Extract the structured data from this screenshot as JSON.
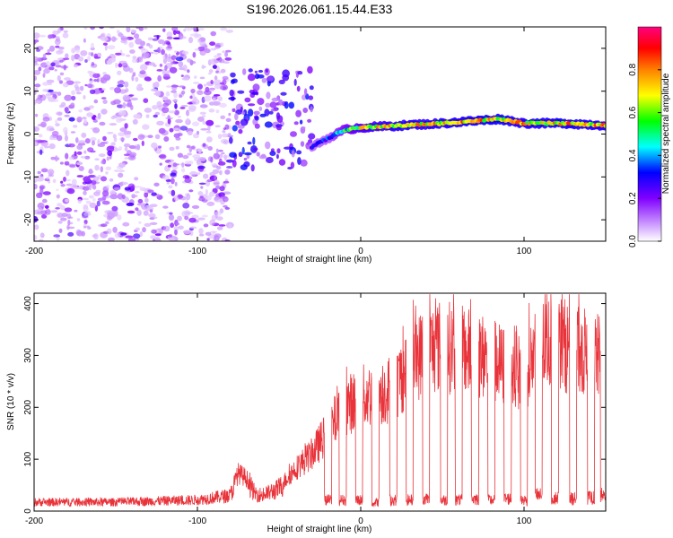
{
  "title": "S196.2026.061.15.44.E33",
  "chart_data": [
    {
      "type": "heatmap",
      "title": "S196.2026.061.15.44.E33",
      "xlabel": "Height of straight line (km)",
      "ylabel": "Frequency (Hz)",
      "xlim": [
        -200,
        150
      ],
      "ylim": [
        -25,
        25
      ],
      "xticks": [
        -200,
        -100,
        0,
        100
      ],
      "xtick_labels": [
        "-200",
        "-100",
        "0",
        "100"
      ],
      "yticks": [
        -20,
        -10,
        0,
        10,
        20
      ],
      "ytick_labels": [
        "-20",
        "-10",
        "0",
        "10",
        "20"
      ],
      "colorbar": {
        "label": "Normalized spectral amplitude",
        "range": [
          0,
          1
        ],
        "ticks": [
          0.0,
          0.2,
          0.4,
          0.6,
          0.8
        ],
        "tick_labels": [
          "0.0",
          "0.2",
          "0.4",
          "0.6",
          "0.8"
        ],
        "colors": [
          "#ffffff",
          "#bf80ff",
          "#8000ff",
          "#0000ff",
          "#00ffff",
          "#00ff00",
          "#ffff00",
          "#ff8000",
          "#ff0000",
          "#ff0080"
        ]
      },
      "noise_region": {
        "x_range": [
          -200,
          -80
        ],
        "freq_range": [
          -25,
          25
        ],
        "amplitude": 0.15
      },
      "transition_region": {
        "x_range": [
          -80,
          -30
        ],
        "freq_range": [
          -8,
          15
        ],
        "amplitude": 0.3
      },
      "tone_track": [
        {
          "x": -30,
          "freq": -3,
          "amp": 0.35
        },
        {
          "x": -20,
          "freq": -1,
          "amp": 0.4
        },
        {
          "x": -10,
          "freq": 1,
          "amp": 0.6
        },
        {
          "x": 0,
          "freq": 1.5,
          "amp": 0.75
        },
        {
          "x": 25,
          "freq": 2,
          "amp": 0.85
        },
        {
          "x": 50,
          "freq": 2.5,
          "amp": 0.85
        },
        {
          "x": 85,
          "freq": 3.5,
          "amp": 0.9
        },
        {
          "x": 100,
          "freq": 2.5,
          "amp": 0.85
        },
        {
          "x": 125,
          "freq": 2.5,
          "amp": 0.9
        },
        {
          "x": 150,
          "freq": 2,
          "amp": 0.85
        }
      ]
    },
    {
      "type": "line",
      "xlabel": "Height of straight line (km)",
      "ylabel": "SNR (10 * v/v)",
      "xlim": [
        -200,
        150
      ],
      "ylim": [
        0,
        420
      ],
      "xticks": [
        -200,
        -100,
        0,
        100
      ],
      "xtick_labels": [
        "-200",
        "-100",
        "0",
        "100"
      ],
      "yticks": [
        0,
        100,
        200,
        300,
        400
      ],
      "ytick_labels": [
        "0",
        "100",
        "200",
        "300",
        "400"
      ],
      "color": "#e8333a",
      "series": [
        {
          "name": "SNR",
          "envelope": {
            "x": [
              -200,
              -150,
              -100,
              -80,
              -75,
              -70,
              -65,
              -60,
              -50,
              -40,
              -30,
              -20,
              -10,
              0,
              10,
              20,
              30,
              40,
              50,
              60,
              70,
              80,
              90,
              100,
              110,
              120,
              130,
              140,
              150
            ],
            "y": [
              20,
              20,
              25,
              35,
              80,
              70,
              40,
              35,
              50,
              90,
              120,
              170,
              220,
              240,
              250,
              260,
              310,
              340,
              350,
              340,
              330,
              320,
              300,
              290,
              350,
              360,
              340,
              330,
              320
            ]
          },
          "dropouts": {
            "x": [
              -20,
              -11,
              -1,
              9,
              20,
              30,
              40,
              51,
              60,
              70,
              80,
              90,
              100,
              109,
              119,
              130,
              141,
              149
            ],
            "y": [
              25,
              25,
              25,
              20,
              25,
              25,
              28,
              25,
              25,
              28,
              25,
              28,
              25,
              35,
              30,
              28,
              30,
              35
            ]
          }
        }
      ]
    }
  ]
}
